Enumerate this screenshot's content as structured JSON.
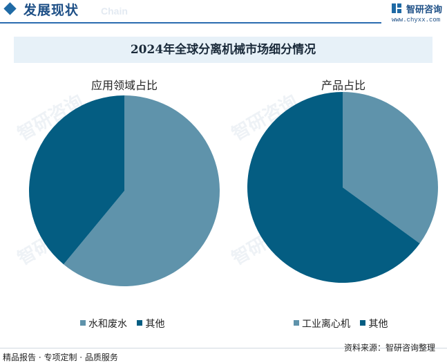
{
  "header": {
    "section_title": "发展现状",
    "section_subtitle": "Chain",
    "brand_name": "智研咨询",
    "brand_url": "www.chyxx.com"
  },
  "banner": {
    "title": "2024年全球分离机械市场细分情况"
  },
  "colors": {
    "light": "#5f93ab",
    "dark": "#045d82",
    "accent": "#1f6aa5"
  },
  "chart_data": [
    {
      "type": "pie",
      "title": "应用领域占比",
      "categories": [
        "水和废水",
        "其他"
      ],
      "values": [
        61,
        39
      ]
    },
    {
      "type": "pie",
      "title": "产品占比",
      "categories": [
        "工业离心机",
        "其他"
      ],
      "values": [
        35,
        65
      ]
    }
  ],
  "footer": {
    "left": "精品报告 · 专项定制 · 品质服务",
    "right": "资料来源：智研咨询整理"
  },
  "watermark": "智研咨询"
}
